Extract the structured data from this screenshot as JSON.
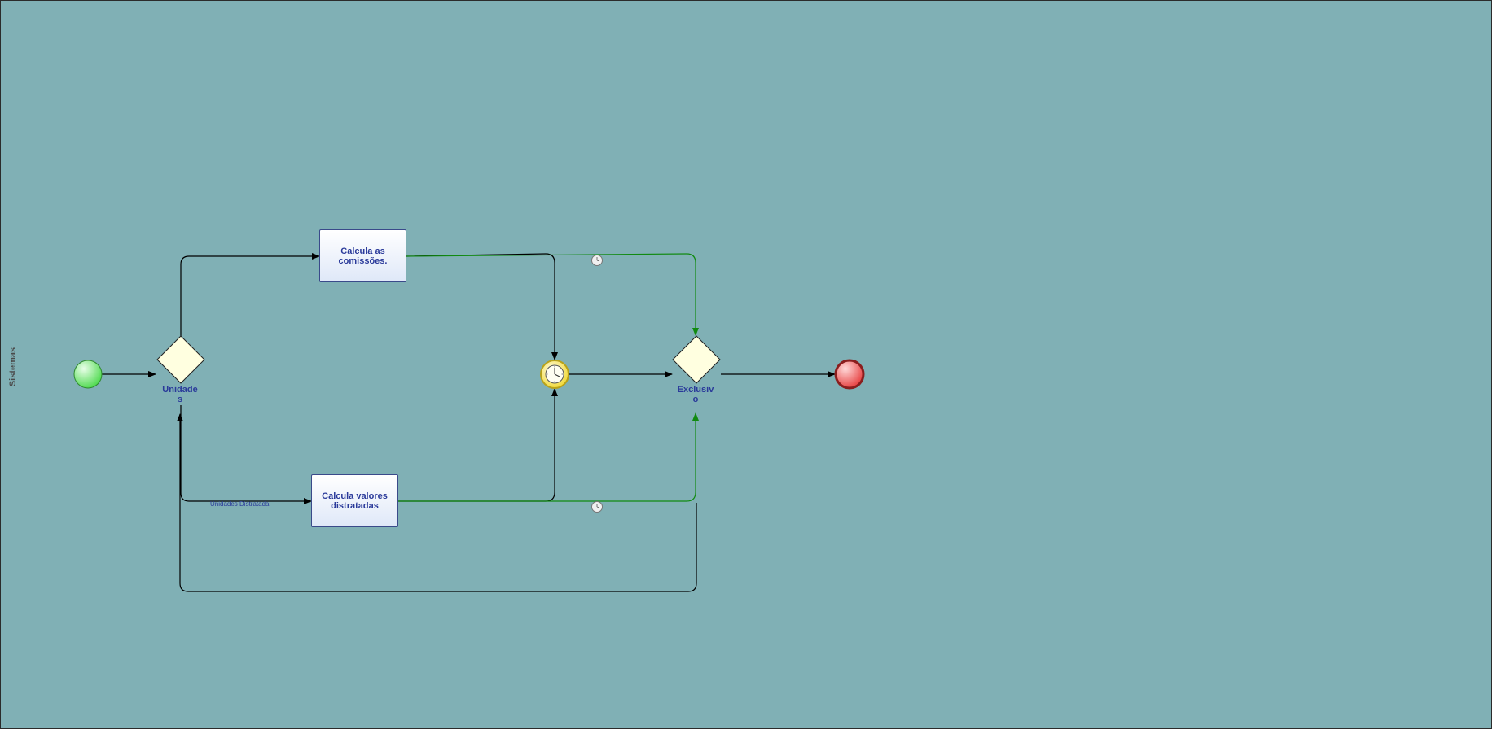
{
  "lane": {
    "label": "Sistemas"
  },
  "gateways": {
    "split": {
      "label": "Unidade\ns"
    },
    "merge": {
      "label": "Exclusiv\no"
    }
  },
  "tasks": {
    "commissions": {
      "label": "Calcula as\ncomissões."
    },
    "cancelled": {
      "label": "Calcula valores\ndistratadas"
    }
  },
  "flows": {
    "cancelled_units": {
      "label": "Unidades Distratada"
    }
  },
  "colors": {
    "pool_background": "#80b0b5",
    "sequence_flow": "#000000",
    "conditional_flow": "#118a11",
    "start_event": "#4cd94c",
    "end_event": "#e63b3b",
    "gateway_fill": "#ffffe0",
    "timer_event": "#f5e642"
  },
  "icons": {
    "timer": "clock-icon",
    "flow_condition": "clock-badge-icon"
  }
}
